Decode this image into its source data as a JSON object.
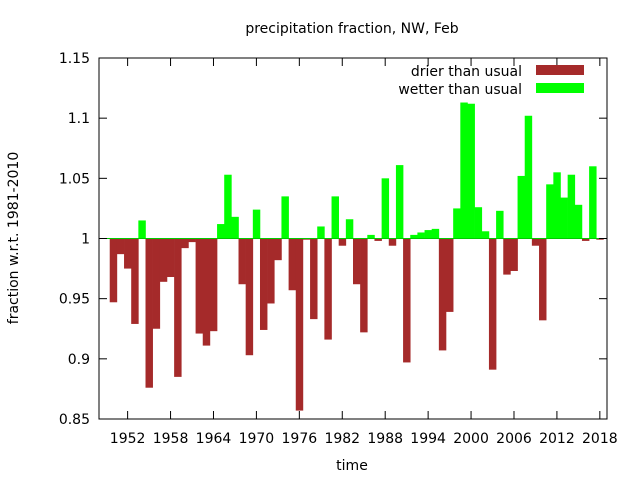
{
  "chart_data": {
    "type": "bar",
    "title": "precipitation fraction, NW, Feb",
    "xlabel": "time",
    "ylabel": "fraction w.r.t. 1981-2010",
    "xlim": [
      1948,
      2019
    ],
    "ylim": [
      0.85,
      1.15
    ],
    "baseline": 1.0,
    "yticks": [
      "0.85",
      "0.9",
      "0.95",
      "1",
      "1.05",
      "1.1",
      "1.15"
    ],
    "xticks": [
      "1952",
      "1958",
      "1964",
      "1970",
      "1976",
      "1982",
      "1988",
      "1994",
      "2000",
      "2006",
      "2012",
      "2018"
    ],
    "series": [
      {
        "name": "drier than usual",
        "color": "#a52a2a"
      },
      {
        "name": "wetter than usual",
        "color": "#00ff00"
      }
    ],
    "legend_position": "top-right",
    "years": [
      1950,
      1951,
      1952,
      1953,
      1954,
      1955,
      1956,
      1957,
      1958,
      1959,
      1960,
      1961,
      1962,
      1963,
      1964,
      1965,
      1966,
      1967,
      1968,
      1969,
      1970,
      1971,
      1972,
      1973,
      1974,
      1975,
      1976,
      1977,
      1978,
      1979,
      1980,
      1981,
      1982,
      1983,
      1984,
      1985,
      1986,
      1987,
      1988,
      1989,
      1990,
      1991,
      1992,
      1993,
      1994,
      1995,
      1996,
      1997,
      1998,
      1999,
      2000,
      2001,
      2002,
      2003,
      2004,
      2005,
      2006,
      2007,
      2008,
      2009,
      2010,
      2011,
      2012,
      2013,
      2014,
      2015,
      2016,
      2017,
      2018
    ],
    "values": [
      0.947,
      0.987,
      0.975,
      0.929,
      1.015,
      0.876,
      0.925,
      0.964,
      0.968,
      0.885,
      0.992,
      0.997,
      0.921,
      0.911,
      0.923,
      1.012,
      1.053,
      1.018,
      0.962,
      0.903,
      1.024,
      0.924,
      0.946,
      0.982,
      1.035,
      0.957,
      0.857,
      0.999,
      0.933,
      1.01,
      0.916,
      1.035,
      0.994,
      1.016,
      0.962,
      0.922,
      1.003,
      0.998,
      1.05,
      0.994,
      1.061,
      0.897,
      1.003,
      1.005,
      1.007,
      1.008,
      0.907,
      0.939,
      1.025,
      1.113,
      1.112,
      1.026,
      1.006,
      0.891,
      1.023,
      0.97,
      0.973,
      1.052,
      1.102,
      0.994,
      0.932,
      1.045,
      1.055,
      1.034,
      1.053,
      1.028,
      0.998,
      1.06,
      0.999
    ]
  }
}
